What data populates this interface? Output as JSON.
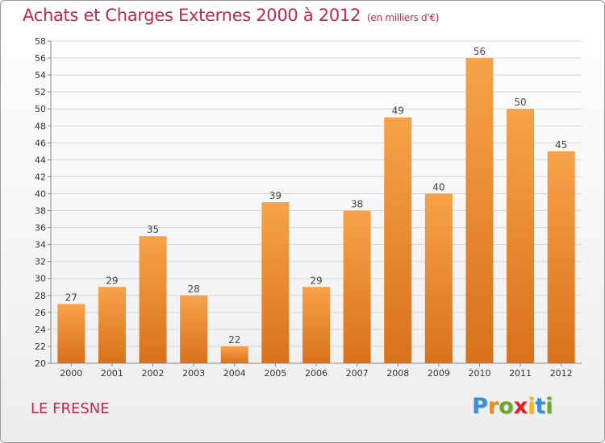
{
  "chart_data": {
    "type": "bar",
    "title": "Achats et Charges Externes 2000 à 2012",
    "subtitle": "(en milliers d'€)",
    "categories": [
      "2000",
      "2001",
      "2002",
      "2003",
      "2004",
      "2005",
      "2006",
      "2007",
      "2008",
      "2009",
      "2010",
      "2011",
      "2012"
    ],
    "values": [
      27,
      29,
      35,
      28,
      22,
      39,
      29,
      38,
      49,
      40,
      56,
      50,
      45
    ],
    "ylim": [
      20,
      58
    ],
    "ytick_step": 2,
    "grid": true,
    "bar_color": "#f28f2c"
  },
  "footer": {
    "city": "LE FRESNE",
    "logo_letters": [
      "P",
      "r",
      "o",
      "x",
      "i",
      "t",
      "i"
    ],
    "logo_colors": [
      "#3a8fd1",
      "#f28a1c",
      "#6aaa2a",
      "#d9242a",
      "#f2b81c",
      "#3a8fd1",
      "#6aaa2a"
    ]
  }
}
